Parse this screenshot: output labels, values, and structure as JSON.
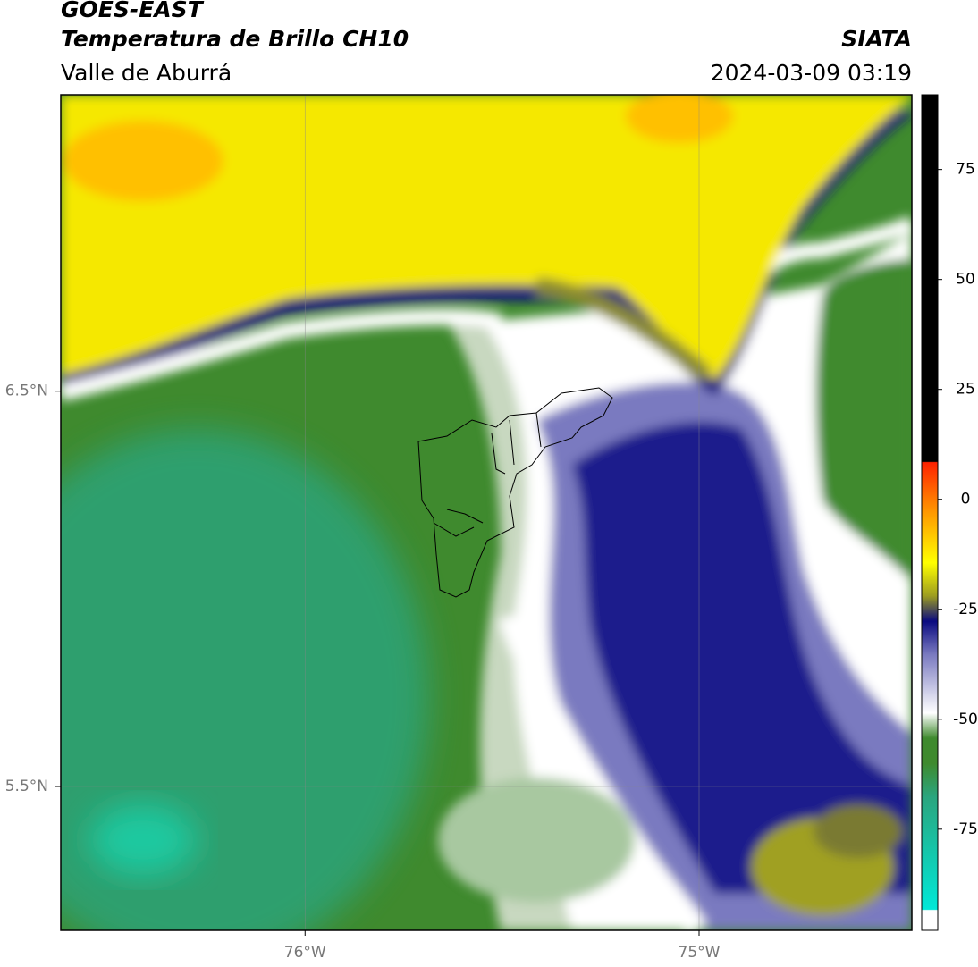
{
  "header": {
    "title": "GOES-EAST",
    "subtitle": "Temperatura de Brillo CH10",
    "region": "Valle de Aburrá",
    "source": "SIATA",
    "datetime": "2024-03-09 03:19"
  },
  "map": {
    "xlim": [
      -76.62,
      -74.46
    ],
    "ylim": [
      5.136,
      7.25
    ],
    "xticks": [
      {
        "value": -76,
        "label": "76°W"
      },
      {
        "value": -75,
        "label": "75°W"
      }
    ],
    "yticks": [
      {
        "value": 6.5,
        "label": "6.5°N"
      },
      {
        "value": 5.5,
        "label": "5.5°N"
      }
    ]
  },
  "colorbar": {
    "lim": [
      -98,
      92
    ],
    "ticks": [
      75,
      50,
      25,
      0,
      -25,
      -50,
      -75
    ]
  }
}
